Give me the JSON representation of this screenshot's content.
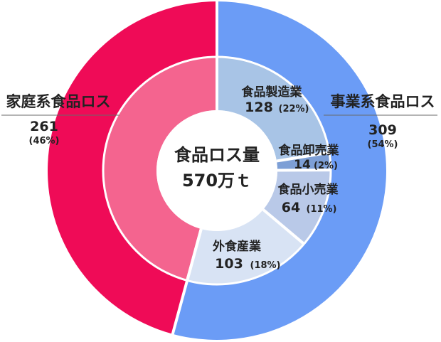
{
  "chart_data": {
    "type": "donut",
    "center": {
      "title": "食品ロス量",
      "total": "570万ｔ"
    },
    "outer": [
      {
        "name": "事業系食品ロス",
        "value": 309,
        "pct": "(54%)",
        "color": "#6b9cf6"
      },
      {
        "name": "家庭系食品ロス",
        "value": 261,
        "pct": "(46%)",
        "color": "#ef0b57"
      }
    ],
    "inner": [
      {
        "name": "食品製造業",
        "value": 128,
        "pct": "(22%)",
        "color": "#a8c4e6"
      },
      {
        "name": "食品卸売業",
        "value": 14,
        "pct": "(2%)",
        "color": "#7d9fd6"
      },
      {
        "name": "食品小売業",
        "value": 64,
        "pct": "(11%)",
        "color": "#b9c9e8"
      },
      {
        "name": "外食産業",
        "value": 103,
        "pct": "(18%)",
        "color": "#d8e3f4"
      },
      {
        "name": "家庭系食品ロス",
        "value": 261,
        "pct": "",
        "color": "#f4648f"
      }
    ]
  }
}
